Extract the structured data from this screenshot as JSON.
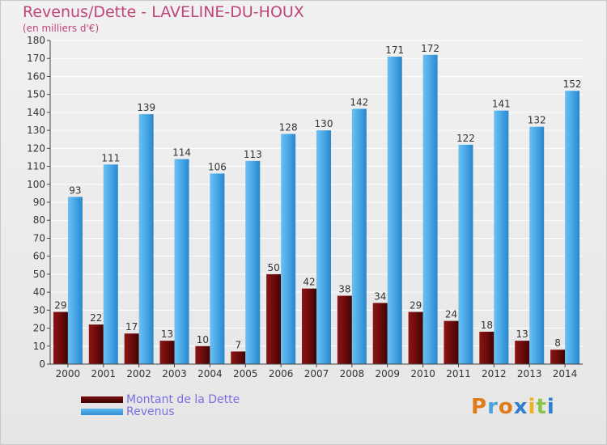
{
  "title": "Revenus/Dette - LAVELINE-DU-HOUX",
  "subtitle": "(en milliers d'€)",
  "logo_text": "Proxiti",
  "colors": {
    "title": "#c0457a",
    "debt": "#6e0b0b",
    "revenue": "#47a7e6",
    "legend_text": "#7a6fe0"
  },
  "chart_data": {
    "type": "bar",
    "categories": [
      "2000",
      "2001",
      "2002",
      "2003",
      "2004",
      "2005",
      "2006",
      "2007",
      "2008",
      "2009",
      "2010",
      "2011",
      "2012",
      "2013",
      "2014"
    ],
    "series": [
      {
        "name": "Montant de la Dette",
        "values": [
          29,
          22,
          17,
          13,
          10,
          7,
          50,
          42,
          38,
          34,
          29,
          24,
          18,
          13,
          8
        ]
      },
      {
        "name": "Revenus",
        "values": [
          93,
          111,
          139,
          114,
          106,
          113,
          128,
          130,
          142,
          171,
          172,
          122,
          141,
          132,
          152
        ]
      }
    ],
    "yticks": [
      0,
      10,
      20,
      30,
      40,
      50,
      60,
      70,
      80,
      90,
      100,
      110,
      120,
      130,
      140,
      150,
      160,
      170,
      180
    ],
    "ylim": [
      0,
      180
    ],
    "grid": true,
    "legend": "bottom-left"
  }
}
